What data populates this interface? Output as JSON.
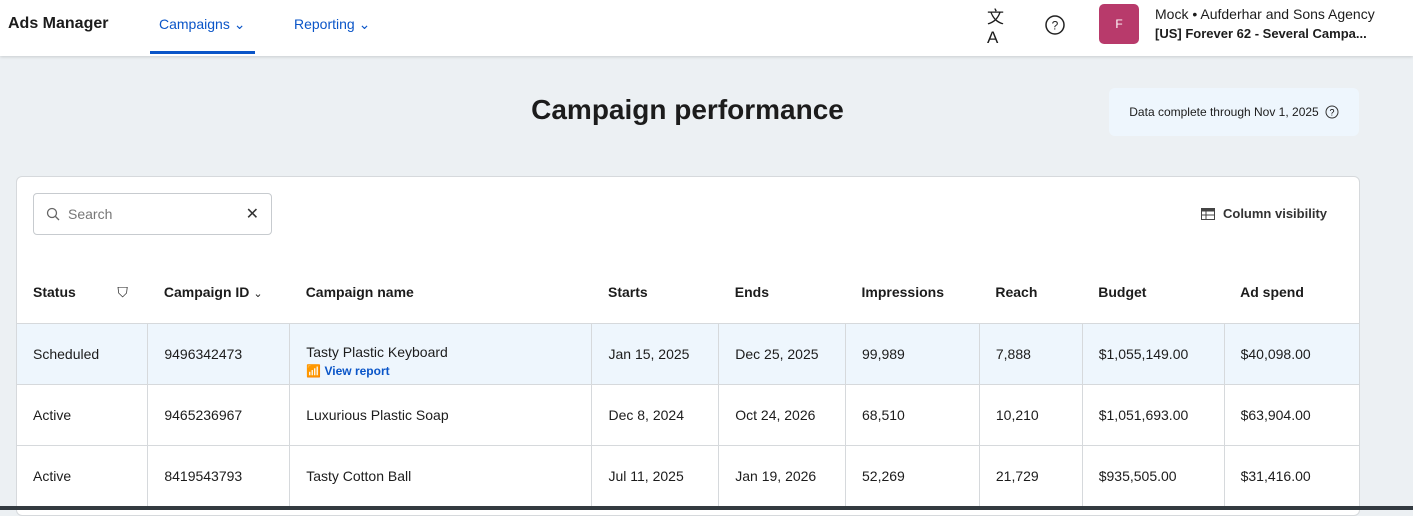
{
  "header": {
    "brand": "Ads Manager",
    "nav": [
      {
        "label": "Campaigns"
      },
      {
        "label": "Reporting"
      }
    ],
    "avatar_initial": "F",
    "account_line1": "Mock • Aufderhar and Sons Agency",
    "account_line2": "[US] Forever 62 - Several Campa..."
  },
  "page": {
    "title": "Campaign performance",
    "data_note": "Data complete through Nov 1, 2025"
  },
  "toolbar": {
    "search_placeholder": "Search",
    "column_visibility": "Column visibility"
  },
  "table": {
    "columns": [
      "Status",
      "Campaign ID",
      "Campaign name",
      "Starts",
      "Ends",
      "Impressions",
      "Reach",
      "Budget",
      "Ad spend"
    ],
    "view_report": "View report",
    "rows": [
      [
        "Scheduled",
        "9496342473",
        "Tasty Plastic Keyboard",
        "Jan 15, 2025",
        "Dec 25, 2025",
        "99,989",
        "7,888",
        "$1,055,149.00",
        "$40,098.00"
      ],
      [
        "Active",
        "9465236967",
        "Luxurious Plastic Soap",
        "Dec 8, 2024",
        "Oct 24, 2026",
        "68,510",
        "10,210",
        "$1,051,693.00",
        "$63,904.00"
      ],
      [
        "Active",
        "8419543793",
        "Tasty Cotton Ball",
        "Jul 11, 2025",
        "Jan 19, 2026",
        "52,269",
        "21,729",
        "$935,505.00",
        "$31,416.00"
      ]
    ]
  }
}
